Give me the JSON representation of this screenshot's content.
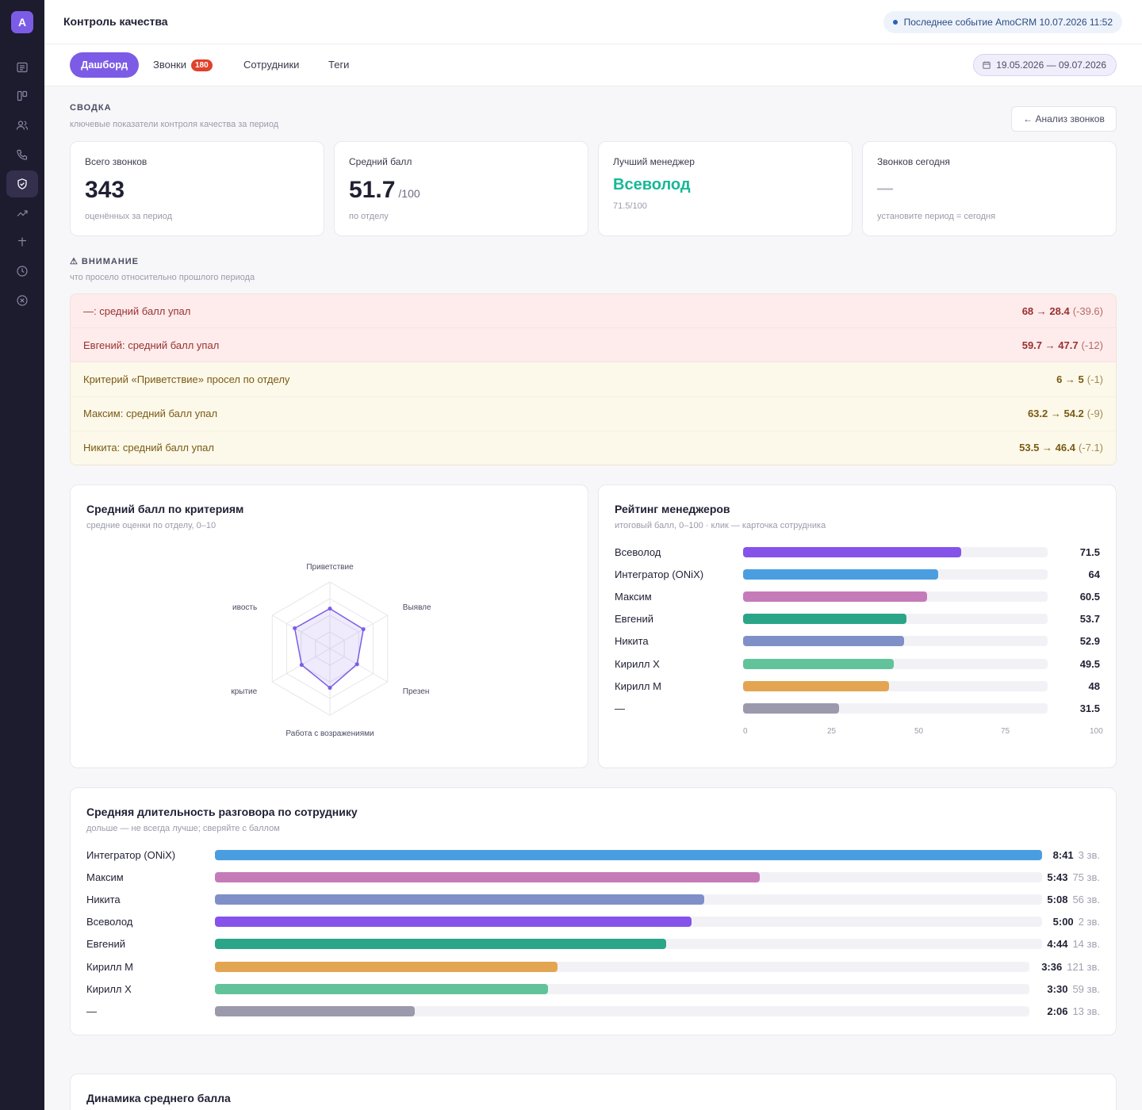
{
  "app": {
    "logo_letter": "A",
    "title": "Контроль качества"
  },
  "topbar": {
    "last_event": "Последнее событие AmoCRM 10.07.2026 11:52"
  },
  "sidebar": {
    "icons": [
      "list-icon",
      "board-icon",
      "users-icon",
      "phone-icon",
      "shield-check-icon",
      "trending-up-icon",
      "plus-icon",
      "clock-icon",
      "close-circle-icon"
    ],
    "active": "shield-check-icon"
  },
  "tabs": [
    {
      "label": "Дашборд",
      "active": true
    },
    {
      "label": "Звонки",
      "badge": "180"
    },
    {
      "label": "Сотрудники"
    },
    {
      "label": "Теги"
    }
  ],
  "date_range": "19.05.2026 — 09.07.2026",
  "summary": {
    "title": "СВОДКА",
    "subtitle": "ключевые показатели контроля качества за период",
    "analyze_button": "← Анализ звонков",
    "kpis": [
      {
        "label": "Всего звонков",
        "value": "343",
        "suffix": "",
        "sub": "оценённых за период"
      },
      {
        "label": "Средний балл",
        "value": "51.7",
        "suffix": "/100",
        "sub": "по отделу"
      },
      {
        "label": "Лучший менеджер",
        "value": "Всеволод",
        "suffix": "",
        "sub": "71.5/100"
      },
      {
        "label": "Звонков сегодня",
        "value": "—",
        "suffix": "",
        "sub": "установите период = сегодня"
      }
    ]
  },
  "attention": {
    "title": "⚠ ВНИМАНИЕ",
    "subtitle": "что просело относительно прошлого периода",
    "items": [
      {
        "text": "—: средний балл упал",
        "change": "68 → 28.4",
        "delta": "(-39.6)",
        "level": "red"
      },
      {
        "text": "Евгений: средний балл упал",
        "change": "59.7 → 47.7",
        "delta": "(-12)",
        "level": "red"
      },
      {
        "text": "Критерий «Приветствие» просел по отделу",
        "change": "6 → 5",
        "delta": "(-1)",
        "level": "yellow"
      },
      {
        "text": "Максим: средний балл упал",
        "change": "63.2 → 54.2",
        "delta": "(-9)",
        "level": "yellow"
      },
      {
        "text": "Никита: средний балл упал",
        "change": "53.5 → 46.4",
        "delta": "(-7.1)",
        "level": "yellow"
      }
    ]
  },
  "criteria_card": {
    "title": "Средний балл по критериям",
    "subtitle": "средние оценки по отделу, 0–10",
    "axis_labels": [
      "Приветствие",
      "Выявле",
      "Презен",
      "Работа с возражениями",
      "крытие",
      "ивость"
    ],
    "values": [
      6.0,
      5.8,
      4.7,
      5.9,
      4.9,
      6.1
    ],
    "max": 10,
    "color": "#7c5ce6"
  },
  "rating_card": {
    "title": "Рейтинг менеджеров",
    "subtitle": "итоговый балл, 0–100 · клик — карточка сотрудника",
    "ticks": [
      "0",
      "25",
      "50",
      "75",
      "100"
    ],
    "rows": [
      {
        "name": "Всеволод",
        "value": 71.5,
        "label": "71.5",
        "color": "#8553ea"
      },
      {
        "name": "Интегратор (ONiX)",
        "value": 64,
        "label": "64",
        "color": "#4a9edf"
      },
      {
        "name": "Максим",
        "value": 60.5,
        "label": "60.5",
        "color": "#c67bb9"
      },
      {
        "name": "Евгений",
        "value": 53.7,
        "label": "53.7",
        "color": "#2aa588"
      },
      {
        "name": "Никита",
        "value": 52.9,
        "label": "52.9",
        "color": "#7f90c9"
      },
      {
        "name": "Кирилл Х",
        "value": 49.5,
        "label": "49.5",
        "color": "#62c39a"
      },
      {
        "name": "Кирилл М",
        "value": 48,
        "label": "48",
        "color": "#e3a552"
      },
      {
        "name": "—",
        "value": 31.5,
        "label": "31.5",
        "color": "#9b9aac"
      }
    ]
  },
  "duration_card": {
    "title": "Средняя длительность разговора по сотруднику",
    "subtitle": "дольше — не всегда лучше; сверяйте с баллом",
    "rows": [
      {
        "name": "Интегратор (ONiX)",
        "seconds": 521,
        "label": "8:41",
        "count": "3 зв.",
        "color": "#4a9edf"
      },
      {
        "name": "Максим",
        "seconds": 343,
        "label": "5:43",
        "count": "75 зв.",
        "color": "#c67bb9"
      },
      {
        "name": "Никита",
        "seconds": 308,
        "label": "5:08",
        "count": "56 зв.",
        "color": "#7f90c9"
      },
      {
        "name": "Всеволод",
        "seconds": 300,
        "label": "5:00",
        "count": "2 зв.",
        "color": "#8553ea"
      },
      {
        "name": "Евгений",
        "seconds": 284,
        "label": "4:44",
        "count": "14 зв.",
        "color": "#2aa588"
      },
      {
        "name": "Кирилл М",
        "seconds": 216,
        "label": "3:36",
        "count": "121 зв.",
        "color": "#e3a552"
      },
      {
        "name": "Кирилл Х",
        "seconds": 210,
        "label": "3:30",
        "count": "59 зв.",
        "color": "#62c39a"
      },
      {
        "name": "—",
        "seconds": 126,
        "label": "2:06",
        "count": "13 зв.",
        "color": "#9b9aac"
      }
    ]
  },
  "dynamics_card": {
    "title": "Динамика среднего балла"
  }
}
